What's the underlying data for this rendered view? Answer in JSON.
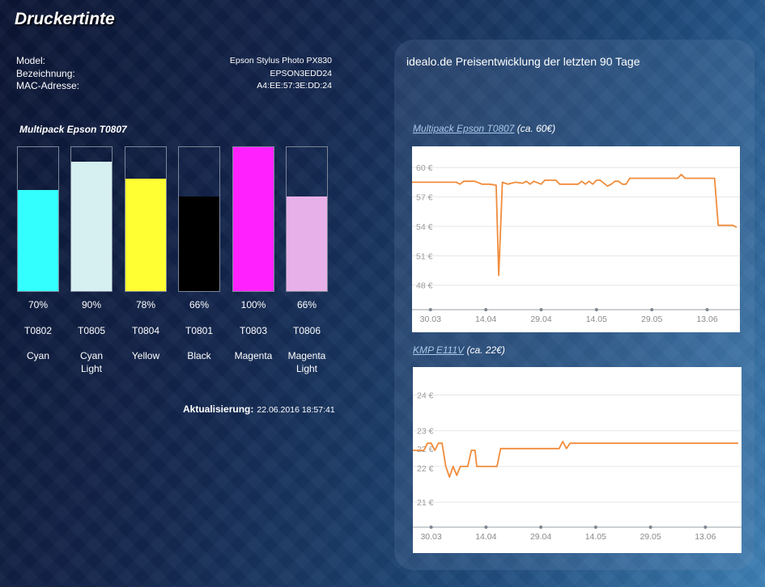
{
  "page": {
    "title": "Druckertinte"
  },
  "info": [
    {
      "label": "Model:",
      "value": "Epson Stylus Photo PX830"
    },
    {
      "label": "Bezeichnung:",
      "value": "EPSON3EDD24"
    },
    {
      "label": "MAC-Adresse:",
      "value": "A4:EE:57:3E:DD:24"
    }
  ],
  "pack": {
    "title": "Multipack Epson T0807"
  },
  "inks": [
    {
      "percent_label": "70%",
      "level": 0.7,
      "code": "T0802",
      "name": "Cyan",
      "color": "#33ffff"
    },
    {
      "percent_label": "90%",
      "level": 0.9,
      "code": "T0805",
      "name": "Cyan Light",
      "color": "#d6eff0"
    },
    {
      "percent_label": "78%",
      "level": 0.78,
      "code": "T0804",
      "name": "Yellow",
      "color": "#ffff33"
    },
    {
      "percent_label": "66%",
      "level": 0.66,
      "code": "T0801",
      "name": "Black",
      "color": "#000000"
    },
    {
      "percent_label": "100%",
      "level": 1.0,
      "code": "T0803",
      "name": "Magenta",
      "color": "#ff22ff"
    },
    {
      "percent_label": "66%",
      "level": 0.66,
      "code": "T0806",
      "name": "Magenta Light",
      "color": "#e8b0e8"
    }
  ],
  "update": {
    "label": "Aktualisierung:",
    "value": "22.06.2016 18:57:41"
  },
  "panel": {
    "title": "idealo.de Preisentwicklung der letzten 90 Tage"
  },
  "chart_data": [
    {
      "type": "line",
      "title_link": "Multipack Epson T0807",
      "title_note": "(ca. 60€)",
      "xlabel": "",
      "ylabel": "",
      "x_ticks": [
        "30.03",
        "14.04",
        "29.04",
        "14.05",
        "29.05",
        "13.06"
      ],
      "x_tick_days": [
        0,
        15,
        30,
        45,
        60,
        75
      ],
      "xlim": [
        -5,
        83
      ],
      "y_ticks": [
        48,
        51,
        54,
        57,
        60
      ],
      "y_tick_labels": [
        "48 €",
        "51 €",
        "54 €",
        "57 €",
        "60 €"
      ],
      "ylim": [
        45.5,
        61.5
      ],
      "line_color": "#f08c3c",
      "series": [
        {
          "points": [
            [
              -5,
              58.5
            ],
            [
              7,
              58.5
            ],
            [
              8,
              58.3
            ],
            [
              9,
              58.6
            ],
            [
              12,
              58.6
            ],
            [
              14,
              58.3
            ],
            [
              16,
              58.3
            ],
            [
              17.8,
              58.2
            ],
            [
              18.5,
              49
            ],
            [
              19.5,
              58.5
            ],
            [
              21,
              58.3
            ],
            [
              23,
              58.5
            ],
            [
              25,
              58.4
            ],
            [
              26,
              58.6
            ],
            [
              27,
              58.3
            ],
            [
              28,
              58.6
            ],
            [
              30,
              58.3
            ],
            [
              31,
              58.7
            ],
            [
              34,
              58.7
            ],
            [
              35,
              58.3
            ],
            [
              40,
              58.3
            ],
            [
              41,
              58.6
            ],
            [
              42,
              58.3
            ],
            [
              43,
              58.6
            ],
            [
              44,
              58.3
            ],
            [
              45,
              58.7
            ],
            [
              46,
              58.7
            ],
            [
              48,
              58.1
            ],
            [
              49,
              58.3
            ],
            [
              50,
              58.6
            ],
            [
              51,
              58.6
            ],
            [
              52,
              58.3
            ],
            [
              53,
              58.3
            ],
            [
              54,
              58.9
            ],
            [
              55,
              58.9
            ],
            [
              67,
              58.9
            ],
            [
              68,
              59.3
            ],
            [
              69,
              58.9
            ],
            [
              77,
              58.9
            ],
            [
              78,
              54.1
            ],
            [
              82,
              54.1
            ],
            [
              83,
              53.9
            ]
          ]
        }
      ]
    },
    {
      "type": "line",
      "title_link": "KMP E111V",
      "title_note": "(ca. 22€)",
      "xlabel": "",
      "ylabel": "",
      "x_ticks": [
        "30.03",
        "14.04",
        "29.04",
        "14.05",
        "29.05",
        "13.06"
      ],
      "x_tick_days": [
        0,
        15,
        30,
        45,
        60,
        75
      ],
      "xlim": [
        -5,
        84
      ],
      "y_ticks": [
        21,
        22,
        23,
        24
      ],
      "y_tick_labels": [
        "21 €",
        "22 €",
        "22 €",
        "23 €",
        "24 €"
      ],
      "y_label_positions": [
        21,
        21.95,
        22.5,
        23,
        24
      ],
      "ylim": [
        20.3,
        24.6
      ],
      "line_color": "#f08c3c",
      "series": [
        {
          "points": [
            [
              -5,
              22.45
            ],
            [
              -2,
              22.45
            ],
            [
              -1,
              22.65
            ],
            [
              0,
              22.65
            ],
            [
              1,
              22.45
            ],
            [
              2,
              22.65
            ],
            [
              3,
              22.65
            ],
            [
              4,
              22.0
            ],
            [
              5,
              21.7
            ],
            [
              6,
              22.0
            ],
            [
              7,
              21.75
            ],
            [
              8,
              22.0
            ],
            [
              9,
              22.0
            ],
            [
              10,
              22.0
            ],
            [
              11,
              22.45
            ],
            [
              12,
              22.45
            ],
            [
              12.5,
              22.0
            ],
            [
              14,
              22.0
            ],
            [
              17,
              22.0
            ],
            [
              18,
              22.0
            ],
            [
              19,
              22.5
            ],
            [
              35,
              22.5
            ],
            [
              36,
              22.7
            ],
            [
              37,
              22.5
            ],
            [
              38,
              22.65
            ],
            [
              84,
              22.65
            ]
          ]
        }
      ]
    }
  ]
}
